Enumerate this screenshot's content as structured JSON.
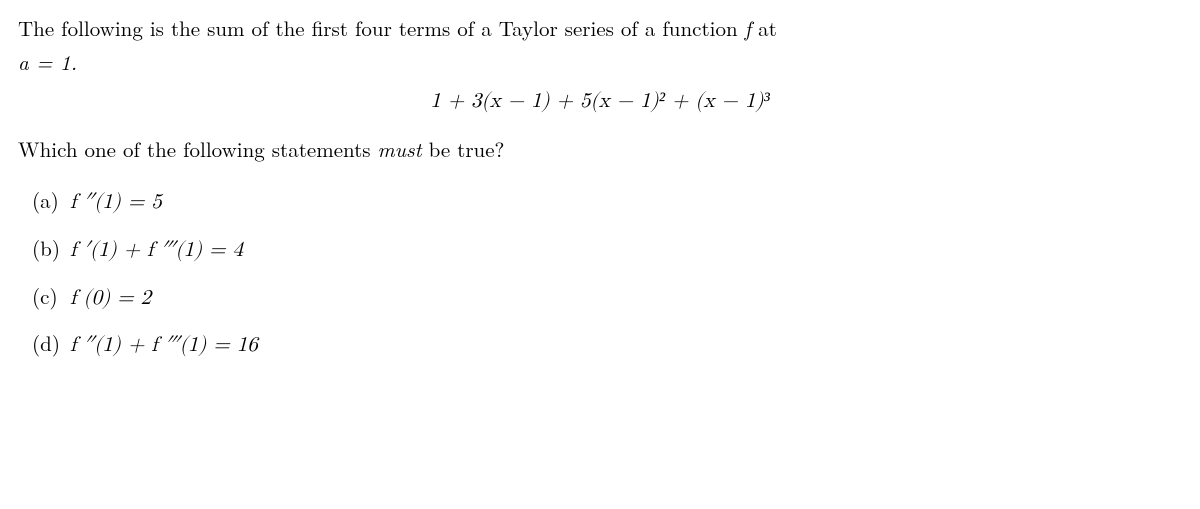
{
  "typography": {
    "font_family": "Latin Modern Roman, Computer Modern, Georgia, serif",
    "math_font_family": "Latin Modern Math, Cambria Math, Georgia, serif",
    "font_size_pt": 16,
    "line_height": 1.6,
    "text_color": "#000000",
    "background_color": "#ffffff"
  },
  "intro": {
    "text_pre": "The following is the sum of the first four terms of a Taylor series of a function ",
    "f": "f",
    "text_mid": " at ",
    "a_eq": "a = 1.",
    "period": ""
  },
  "expression": "1 + 3(x − 1) + 5(x − 1)² + (x − 1)³",
  "question": {
    "pre": "Which one of the following statements ",
    "emph": "must",
    "post": " be true?"
  },
  "options": [
    {
      "label": "(a)",
      "body": "f ″(1) = 5"
    },
    {
      "label": "(b)",
      "body": "f ′(1) + f ‴(1) = 4"
    },
    {
      "label": "(c)",
      "body": "f (0) = 2"
    },
    {
      "label": "(d)",
      "body": "f ″(1) + f ‴(1) = 16"
    }
  ]
}
